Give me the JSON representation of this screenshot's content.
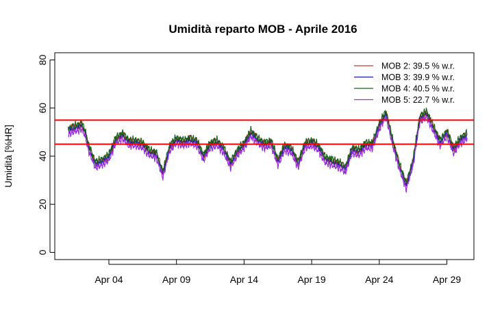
{
  "chart_data": {
    "type": "line",
    "title": "Umidità reparto MOB - Aprile 2016",
    "xlabel": "",
    "ylabel": "Umidità [%HR]",
    "xlim": [
      "2016-03-31",
      "2016-05-01"
    ],
    "ylim": [
      -3,
      83
    ],
    "y_ticks": [
      0,
      20,
      40,
      60,
      80
    ],
    "x_ticks": [
      {
        "date": "2016-04-04",
        "label": "Apr 04"
      },
      {
        "date": "2016-04-09",
        "label": "Apr 09"
      },
      {
        "date": "2016-04-14",
        "label": "Apr 14"
      },
      {
        "date": "2016-04-19",
        "label": "Apr 19"
      },
      {
        "date": "2016-04-24",
        "label": "Apr 24"
      },
      {
        "date": "2016-04-29",
        "label": "Apr 29"
      }
    ],
    "reference_lines": [
      {
        "y": 45,
        "color": "#ff0000"
      },
      {
        "y": 55,
        "color": "#ff0000"
      }
    ],
    "grid": false,
    "legend_position": "top-right",
    "series": [
      {
        "name": "MOB 2:  39.5 % w.r.",
        "color": "#c0392b",
        "offset": 0.0
      },
      {
        "name": "MOB 3:  39.9 % w.r.",
        "color": "#1a1aa6",
        "offset": -0.5
      },
      {
        "name": "MOB 4:  40.5 % w.r.",
        "color": "#1a5e1a",
        "offset": 0.8
      },
      {
        "name": "MOB 5:  22.7 % w.r.",
        "color": "#9b30d9",
        "offset": -1.8
      }
    ],
    "profile": {
      "x": [
        "2016-04-01",
        "2016-04-01T12:00",
        "2016-04-02",
        "2016-04-02T06:00",
        "2016-04-02T12:00",
        "2016-04-03",
        "2016-04-03T12:00",
        "2016-04-04",
        "2016-04-04T12:00",
        "2016-04-05",
        "2016-04-05T12:00",
        "2016-04-06",
        "2016-04-06T12:00",
        "2016-04-07",
        "2016-04-07T12:00",
        "2016-04-08",
        "2016-04-08T12:00",
        "2016-04-09",
        "2016-04-09T12:00",
        "2016-04-10",
        "2016-04-10T12:00",
        "2016-04-11",
        "2016-04-11T12:00",
        "2016-04-12",
        "2016-04-12T12:00",
        "2016-04-13",
        "2016-04-13T12:00",
        "2016-04-14",
        "2016-04-14T12:00",
        "2016-04-15",
        "2016-04-15T12:00",
        "2016-04-16",
        "2016-04-16T12:00",
        "2016-04-17",
        "2016-04-17T12:00",
        "2016-04-18",
        "2016-04-18T12:00",
        "2016-04-19",
        "2016-04-19T12:00",
        "2016-04-20",
        "2016-04-20T12:00",
        "2016-04-21",
        "2016-04-21T12:00",
        "2016-04-22",
        "2016-04-22T12:00",
        "2016-04-23",
        "2016-04-23T12:00",
        "2016-04-24",
        "2016-04-24T12:00",
        "2016-04-25",
        "2016-04-25T12:00",
        "2016-04-26",
        "2016-04-26T12:00",
        "2016-04-27",
        "2016-04-27T12:00",
        "2016-04-28",
        "2016-04-28T12:00",
        "2016-04-29",
        "2016-04-29T12:00",
        "2016-04-30",
        "2016-04-30T12:00"
      ],
      "y": [
        51,
        52,
        53,
        50,
        44,
        37,
        38,
        40,
        47,
        49,
        46,
        46,
        45,
        42,
        41,
        33,
        44,
        47,
        46,
        47,
        46,
        40,
        45,
        46,
        43,
        37,
        42,
        45,
        50,
        47,
        45,
        46,
        38,
        44,
        43,
        37,
        45,
        46,
        44,
        39,
        38,
        37,
        35,
        43,
        42,
        45,
        45,
        53,
        58,
        46,
        36,
        28,
        38,
        56,
        58,
        52,
        46,
        50,
        43,
        47,
        49
      ]
    }
  }
}
